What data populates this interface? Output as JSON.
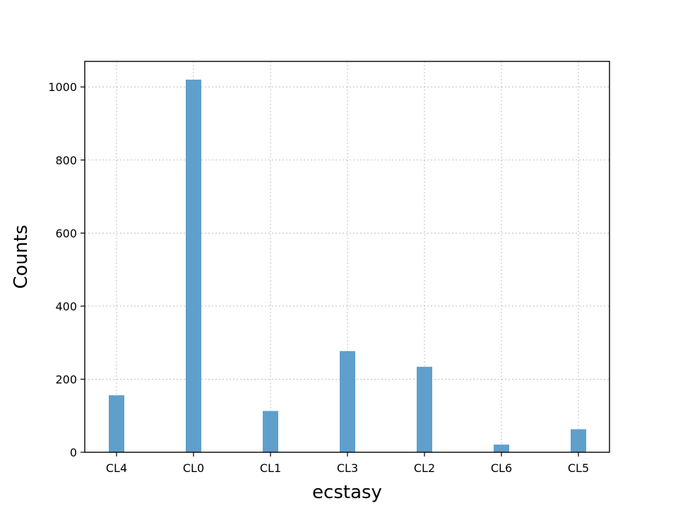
{
  "chart_data": {
    "type": "bar",
    "title": "",
    "xlabel": "ecstasy",
    "ylabel": "Counts",
    "categories": [
      "CL4",
      "CL0",
      "CL1",
      "CL3",
      "CL2",
      "CL6",
      "CL5"
    ],
    "values": [
      156,
      1020,
      113,
      277,
      234,
      21,
      63
    ],
    "ylim": [
      0,
      1070
    ],
    "yticks": [
      0,
      200,
      400,
      600,
      800,
      1000
    ],
    "grid": true,
    "bar_color": "#5f9fcc"
  }
}
